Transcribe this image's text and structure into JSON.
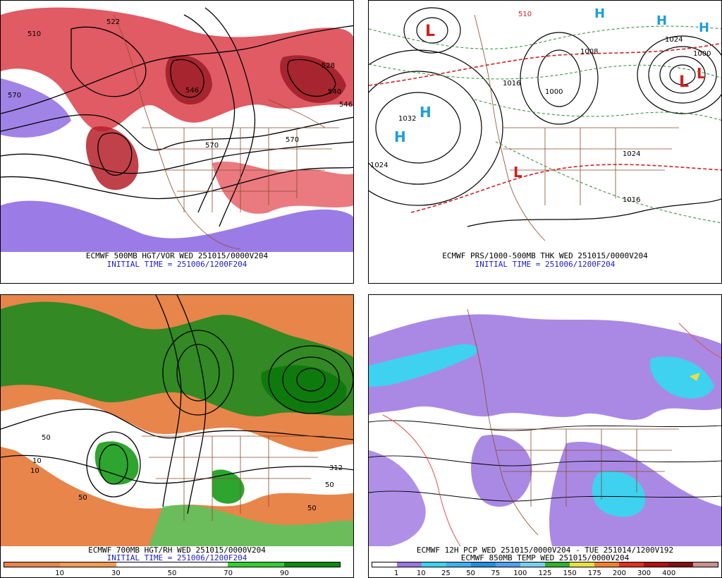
{
  "panels": [
    {
      "id": "tl",
      "caption_line1": "ECMWF 500MB HGT/VOR WED 251015/0000V204",
      "caption_line2": "INITIAL TIME = 251006/1200F204",
      "contour_labels": [
        "510",
        "522",
        "570",
        "546",
        "570",
        "570",
        "528",
        "540",
        "546"
      ]
    },
    {
      "id": "tr",
      "caption_line1": "ECMWF PRS/1000-500MB THK WED 251015/0000V204",
      "caption_line2": "INITIAL TIME = 251006/1200F204",
      "contour_labels": [
        "1032",
        "1024",
        "1000",
        "1008",
        "1016",
        "1024",
        "1024",
        "1016",
        "1000",
        "510"
      ],
      "pressure_centers": [
        "H",
        "H",
        "H",
        "H",
        "H",
        "L",
        "L",
        "L",
        "L"
      ]
    },
    {
      "id": "bl",
      "caption_line1": "ECMWF 700MB HGT/RH WED 251015/0000V204",
      "caption_line2": "INITIAL TIME = 251006/1200F204",
      "contour_labels": [
        "50",
        "10",
        "10",
        "50",
        "50",
        "312",
        "50"
      ]
    },
    {
      "id": "br",
      "caption_line1": "ECMWF 12H PCP WED 251015/0000V204 - TUE 251014/1200V192",
      "caption_line2": "ECMWF 850MB TEMP WED 251015/0000V204"
    }
  ],
  "legends": {
    "rh": {
      "colors": [
        "#e8854a",
        "#f39a55",
        "#ffffff",
        "#ffffff",
        "#33cc33",
        "#0d8a0d"
      ],
      "labels": [
        "10",
        "30",
        "50",
        "70",
        "90"
      ]
    },
    "pcp": {
      "colors": [
        "#ffffff",
        "#9b74e0",
        "#3ed2f0",
        "#3cb0ee",
        "#1e90e0",
        "#50a0f0",
        "#75d0f0",
        "#30b030",
        "#e8e040",
        "#f08030",
        "#e03020",
        "#b01010",
        "#801010",
        "#c89090"
      ],
      "labels": [
        "1",
        "10",
        "25",
        "50",
        "75",
        "100",
        "125",
        "150",
        "175",
        "200",
        "300",
        "400"
      ]
    }
  }
}
